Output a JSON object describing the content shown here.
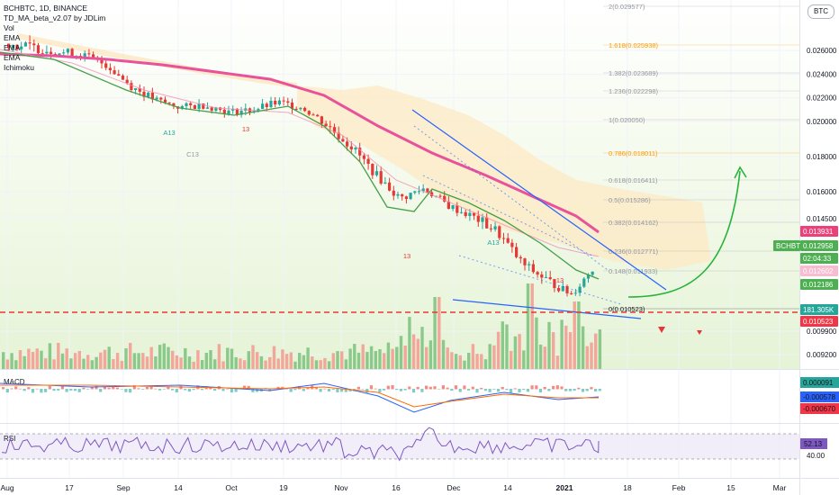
{
  "legend": {
    "symbol": "BCHBTC, 1D, BINANCE",
    "indicators": [
      "TD_MA_beta_v2.07 by JDLim",
      "Vol",
      "EMA",
      "EMA",
      "EMA",
      "Ichimoku"
    ]
  },
  "scale_button": "BTC",
  "x_axis": {
    "ticks": [
      {
        "label": "Aug",
        "bold": false
      },
      {
        "label": "17",
        "bold": false
      },
      {
        "label": "Sep",
        "bold": false
      },
      {
        "label": "14",
        "bold": false
      },
      {
        "label": "Oct",
        "bold": false
      },
      {
        "label": "19",
        "bold": false
      },
      {
        "label": "Nov",
        "bold": false
      },
      {
        "label": "16",
        "bold": false
      },
      {
        "label": "Dec",
        "bold": false
      },
      {
        "label": "14",
        "bold": false
      },
      {
        "label": "2021",
        "bold": true
      },
      {
        "label": "18",
        "bold": false
      },
      {
        "label": "Feb",
        "bold": false
      },
      {
        "label": "15",
        "bold": false
      },
      {
        "label": "Mar",
        "bold": false
      }
    ]
  },
  "price_axis": {
    "ticks": [
      "0.026000",
      "0.024000",
      "0.022000",
      "0.020000",
      "0.018000",
      "0.016000",
      "0.014500",
      "0.009900",
      "0.009200"
    ],
    "tags": [
      {
        "label": "0.013931",
        "color": "#ec407a"
      },
      {
        "label": "BCHBTC",
        "color": "#4caf50"
      },
      {
        "label": "0.012958",
        "color": "#4caf50"
      },
      {
        "label": "02:04:33",
        "color": "#4caf50"
      },
      {
        "label": "0.012602",
        "color": "#f8bbd0"
      },
      {
        "label": "0.012186",
        "color": "#4caf50"
      },
      {
        "label": "181.305K",
        "color": "#26a69a"
      },
      {
        "label": "0.010523",
        "color": "#f23645"
      }
    ]
  },
  "fib_levels": [
    {
      "ratio": "2",
      "value": "0.029577",
      "color": "#9598a1"
    },
    {
      "ratio": "1.618",
      "value": "0.025938",
      "color": "#ff9800"
    },
    {
      "ratio": "1.382",
      "value": "0.023689",
      "color": "#9598a1"
    },
    {
      "ratio": "1.236",
      "value": "0.022298",
      "color": "#9598a1"
    },
    {
      "ratio": "1",
      "value": "0.020050",
      "color": "#9598a1"
    },
    {
      "ratio": "0.786",
      "value": "0.018011",
      "color": "#ff9800"
    },
    {
      "ratio": "0.618",
      "value": "0.016411",
      "color": "#9598a1"
    },
    {
      "ratio": "0.5",
      "value": "0.015286",
      "color": "#9598a1"
    },
    {
      "ratio": "0.382",
      "value": "0.014162",
      "color": "#9598a1"
    },
    {
      "ratio": "0.236",
      "value": "0.012771",
      "color": "#9598a1"
    },
    {
      "ratio": "0.148",
      "value": "0.011933",
      "color": "#9598a1"
    },
    {
      "ratio": "0",
      "value": "0.010523",
      "color": "#131722"
    }
  ],
  "annotations": [
    "A13",
    "13",
    "C13",
    "13",
    "A13",
    "13"
  ],
  "macd": {
    "label": "MACD",
    "tags": [
      {
        "label": "0.000091",
        "color": "#26a69a"
      },
      {
        "label": "-0.000578",
        "color": "#2962ff"
      },
      {
        "label": "-0.000670",
        "color": "#f23645"
      }
    ]
  },
  "rsi": {
    "label": "RSI",
    "tags": [
      {
        "label": "52.13",
        "color": "#7e57c2"
      }
    ],
    "ticks": [
      "40.00"
    ]
  },
  "chart_data": {
    "type": "line",
    "x": [
      "2020-07-27",
      "2020-08-03",
      "2020-08-10",
      "2020-08-17",
      "2020-08-24",
      "2020-08-31",
      "2020-09-07",
      "2020-09-14",
      "2020-09-21",
      "2020-09-28",
      "2020-10-05",
      "2020-10-12",
      "2020-10-19",
      "2020-10-26",
      "2020-11-02",
      "2020-11-09",
      "2020-11-16",
      "2020-11-23",
      "2020-11-30",
      "2020-12-07",
      "2020-12-14",
      "2020-12-21",
      "2020-12-28",
      "2021-01-04",
      "2021-01-08"
    ],
    "series": [
      {
        "values": [
          0.0265,
          0.0262,
          0.0259,
          0.0256,
          0.0248,
          0.023,
          0.0218,
          0.0212,
          0.0214,
          0.0208,
          0.021,
          0.0216,
          0.0212,
          0.0198,
          0.0186,
          0.017,
          0.0156,
          0.0162,
          0.0152,
          0.0146,
          0.014,
          0.0128,
          0.0122,
          0.0116,
          0.0128
        ]
      }
    ],
    "ylim": [
      0.009,
      0.0296
    ]
  }
}
